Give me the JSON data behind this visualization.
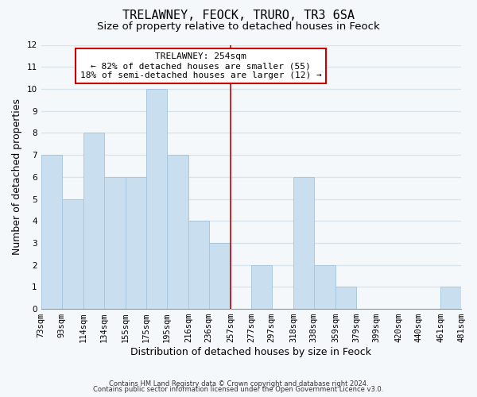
{
  "title": "TRELAWNEY, FEOCK, TRURO, TR3 6SA",
  "subtitle": "Size of property relative to detached houses in Feock",
  "xlabel": "Distribution of detached houses by size in Feock",
  "ylabel": "Number of detached properties",
  "bar_left_edges": [
    73,
    93,
    114,
    134,
    155,
    175,
    195,
    216,
    236,
    257,
    277,
    297,
    318,
    338,
    359,
    379,
    399,
    420,
    440,
    461
  ],
  "bar_widths": [
    20,
    21,
    20,
    21,
    20,
    20,
    21,
    20,
    21,
    20,
    20,
    21,
    20,
    21,
    20,
    20,
    21,
    20,
    21,
    20
  ],
  "bar_heights": [
    7,
    5,
    8,
    6,
    6,
    10,
    7,
    4,
    3,
    0,
    2,
    0,
    6,
    2,
    1,
    0,
    0,
    0,
    0,
    1
  ],
  "bar_color": "#c9dff0",
  "bar_edgecolor": "#a8c8e0",
  "tick_labels": [
    "73sqm",
    "93sqm",
    "114sqm",
    "134sqm",
    "155sqm",
    "175sqm",
    "195sqm",
    "216sqm",
    "236sqm",
    "257sqm",
    "277sqm",
    "297sqm",
    "318sqm",
    "338sqm",
    "359sqm",
    "379sqm",
    "399sqm",
    "420sqm",
    "440sqm",
    "461sqm",
    "481sqm"
  ],
  "ylim": [
    0,
    12
  ],
  "yticks": [
    0,
    1,
    2,
    3,
    4,
    5,
    6,
    7,
    8,
    9,
    10,
    11,
    12
  ],
  "property_line_x": 257,
  "property_line_color": "#cc0000",
  "annotation_title": "TRELAWNEY: 254sqm",
  "annotation_line1": "← 82% of detached houses are smaller (55)",
  "annotation_line2": "18% of semi-detached houses are larger (12) →",
  "footer1": "Contains HM Land Registry data © Crown copyright and database right 2024.",
  "footer2": "Contains public sector information licensed under the Open Government Licence v3.0.",
  "background_color": "#f5f8fa",
  "grid_color": "#d8e4ec",
  "title_fontsize": 11,
  "subtitle_fontsize": 9.5,
  "axis_label_fontsize": 9,
  "tick_fontsize": 7.5,
  "annotation_fontsize": 8
}
